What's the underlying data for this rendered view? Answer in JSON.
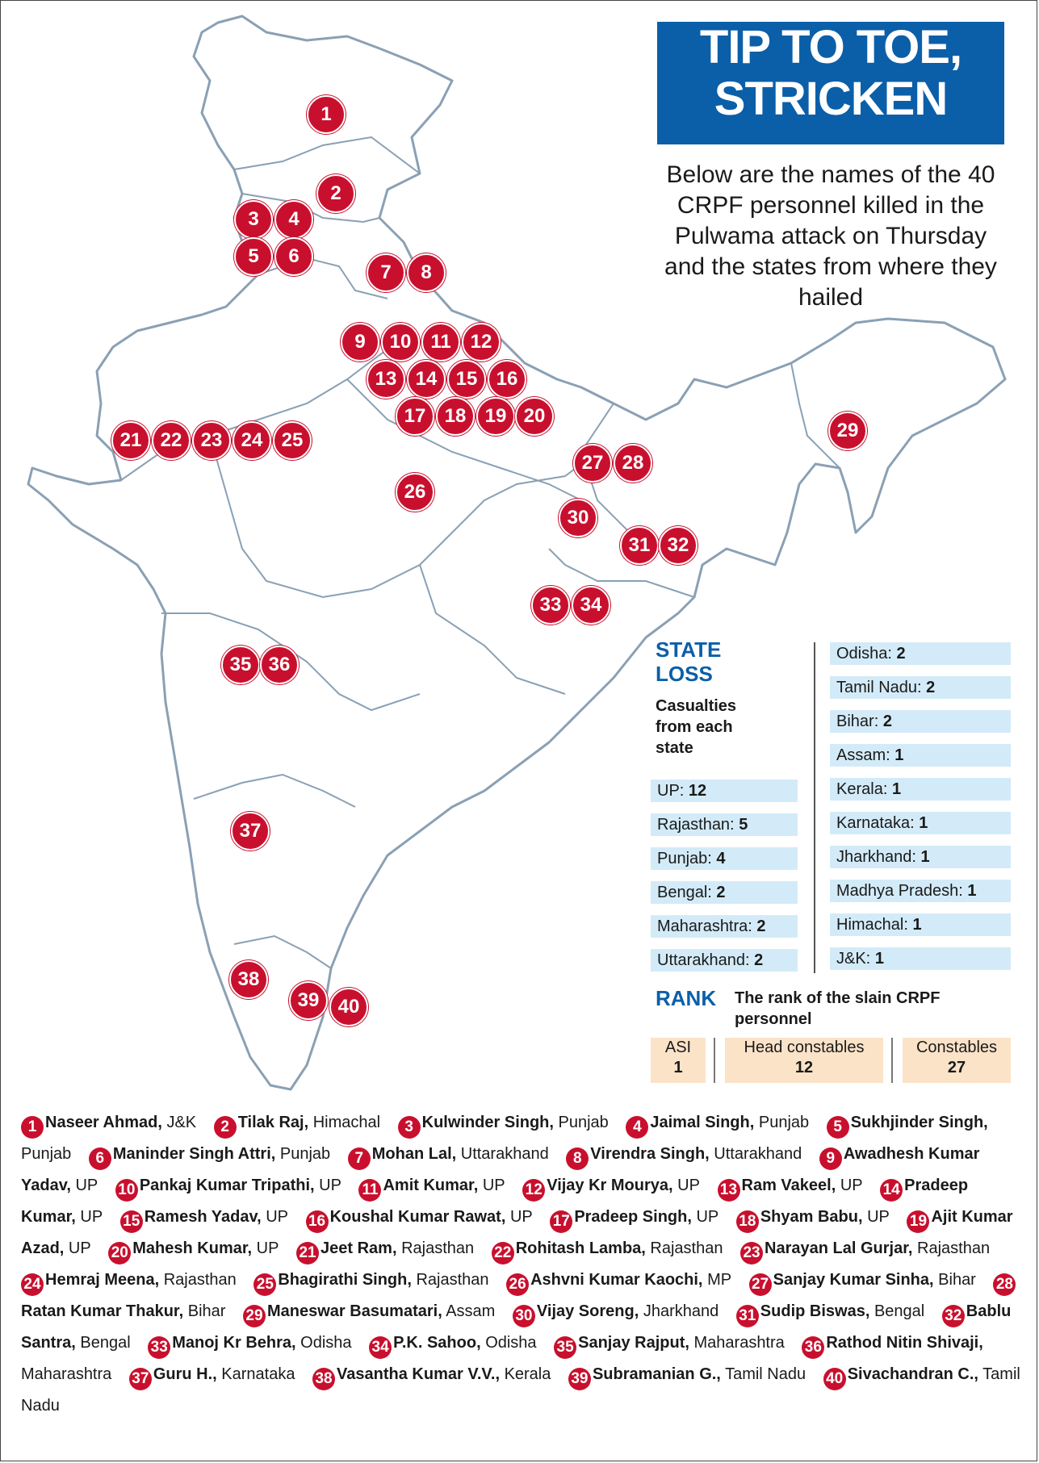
{
  "title_lines": [
    "TIP TO TOE,",
    "STRICKEN"
  ],
  "subtitle": "Below are the names of the 40 CRPF personnel killed in the Pulwama attack on Thursday and the states from where they hailed",
  "colors": {
    "title_bg": "#0b5fa8",
    "marker": "#c8102e",
    "state_row": "#d3ebf8",
    "rank_box": "#fbe3c8",
    "land": "#ffffff",
    "border": "#8aa0b4"
  },
  "markers": [
    "1",
    "2",
    "3",
    "4",
    "5",
    "6",
    "7",
    "8",
    "9",
    "10",
    "11",
    "12",
    "13",
    "14",
    "15",
    "16",
    "17",
    "18",
    "19",
    "20",
    "21",
    "22",
    "23",
    "24",
    "25",
    "26",
    "27",
    "28",
    "29",
    "30",
    "31",
    "32",
    "33",
    "34",
    "35",
    "36",
    "37",
    "38",
    "39",
    "40"
  ],
  "state_loss": {
    "heading_line1": "STATE",
    "heading_line2": "LOSS",
    "sub": "Casualties from each state",
    "left": [
      {
        "state": "UP:",
        "count": "12"
      },
      {
        "state": "Rajasthan:",
        "count": "5"
      },
      {
        "state": "Punjab:",
        "count": "4"
      },
      {
        "state": "Bengal:",
        "count": "2"
      },
      {
        "state": "Maharashtra:",
        "count": "2"
      },
      {
        "state": "Uttarakhand:",
        "count": "2"
      }
    ],
    "right": [
      {
        "state": "Odisha:",
        "count": "2"
      },
      {
        "state": "Tamil Nadu:",
        "count": "2"
      },
      {
        "state": "Bihar:",
        "count": "2"
      },
      {
        "state": "Assam:",
        "count": "1"
      },
      {
        "state": "Kerala:",
        "count": "1"
      },
      {
        "state": "Karnataka:",
        "count": "1"
      },
      {
        "state": "Jharkhand:",
        "count": "1"
      },
      {
        "state": "Madhya Pradesh:",
        "count": "1"
      },
      {
        "state": "Himachal:",
        "count": "1"
      },
      {
        "state": "J&K:",
        "count": "1"
      }
    ]
  },
  "rank": {
    "heading": "RANK",
    "sub": "The rank of the slain CRPF personnel",
    "items": [
      {
        "label": "ASI",
        "value": "1"
      },
      {
        "label": "Head constables",
        "value": "12"
      },
      {
        "label": "Constables",
        "value": "27"
      }
    ]
  },
  "personnel": [
    {
      "n": "1",
      "name": "Naseer Ahmad,",
      "state": "J&K"
    },
    {
      "n": "2",
      "name": "Tilak Raj,",
      "state": "Himachal"
    },
    {
      "n": "3",
      "name": "Kulwinder Singh,",
      "state": "Punjab"
    },
    {
      "n": "4",
      "name": "Jaimal Singh,",
      "state": "Punjab"
    },
    {
      "n": "5",
      "name": "Sukhjinder Singh,",
      "state": "Punjab"
    },
    {
      "n": "6",
      "name": "Maninder Singh Attri,",
      "state": "Punjab"
    },
    {
      "n": "7",
      "name": "Mohan Lal,",
      "state": "Uttarakhand"
    },
    {
      "n": "8",
      "name": "Virendra Singh,",
      "state": "Uttarakhand"
    },
    {
      "n": "9",
      "name": "Awadhesh Kumar Yadav,",
      "state": "UP"
    },
    {
      "n": "10",
      "name": "Pankaj Kumar Tripathi,",
      "state": "UP"
    },
    {
      "n": "11",
      "name": "Amit Kumar,",
      "state": "UP"
    },
    {
      "n": "12",
      "name": "Vijay Kr Mourya,",
      "state": "UP"
    },
    {
      "n": "13",
      "name": "Ram Vakeel,",
      "state": "UP"
    },
    {
      "n": "14",
      "name": "Pradeep Kumar,",
      "state": "UP"
    },
    {
      "n": "15",
      "name": "Ramesh Yadav,",
      "state": "UP"
    },
    {
      "n": "16",
      "name": "Koushal Kumar Rawat,",
      "state": "UP"
    },
    {
      "n": "17",
      "name": "Pradeep Singh,",
      "state": "UP"
    },
    {
      "n": "18",
      "name": "Shyam Babu,",
      "state": "UP"
    },
    {
      "n": "19",
      "name": "Ajit Kumar Azad,",
      "state": "UP"
    },
    {
      "n": "20",
      "name": "Mahesh Kumar,",
      "state": "UP"
    },
    {
      "n": "21",
      "name": "Jeet Ram,",
      "state": "Rajasthan"
    },
    {
      "n": "22",
      "name": "Rohitash Lamba,",
      "state": "Rajasthan"
    },
    {
      "n": "23",
      "name": "Narayan Lal Gurjar,",
      "state": "Rajasthan"
    },
    {
      "n": "24",
      "name": "Hemraj Meena,",
      "state": "Rajasthan"
    },
    {
      "n": "25",
      "name": "Bhagirathi Singh,",
      "state": "Rajasthan"
    },
    {
      "n": "26",
      "name": "Ashvni Kumar Kaochi,",
      "state": "MP"
    },
    {
      "n": "27",
      "name": "Sanjay Kumar Sinha,",
      "state": "Bihar"
    },
    {
      "n": "28",
      "name": "Ratan Kumar Thakur,",
      "state": "Bihar"
    },
    {
      "n": "29",
      "name": "Maneswar Basumatari,",
      "state": "Assam"
    },
    {
      "n": "30",
      "name": "Vijay Soreng,",
      "state": "Jharkhand"
    },
    {
      "n": "31",
      "name": "Sudip Biswas,",
      "state": "Bengal"
    },
    {
      "n": "32",
      "name": "Bablu Santra,",
      "state": "Bengal"
    },
    {
      "n": "33",
      "name": "Manoj Kr Behra,",
      "state": "Odisha"
    },
    {
      "n": "34",
      "name": "P.K. Sahoo,",
      "state": "Odisha"
    },
    {
      "n": "35",
      "name": "Sanjay Rajput,",
      "state": "Maharashtra"
    },
    {
      "n": "36",
      "name": "Rathod Nitin Shivaji,",
      "state": "Maharashtra"
    },
    {
      "n": "37",
      "name": "Guru H.,",
      "state": "Karnataka"
    },
    {
      "n": "38",
      "name": "Vasantha Kumar V.V.,",
      "state": "Kerala"
    },
    {
      "n": "39",
      "name": "Subramanian G.,",
      "state": "Tamil Nadu"
    },
    {
      "n": "40",
      "name": "Sivachandran C.,",
      "state": "Tamil Nadu"
    }
  ]
}
